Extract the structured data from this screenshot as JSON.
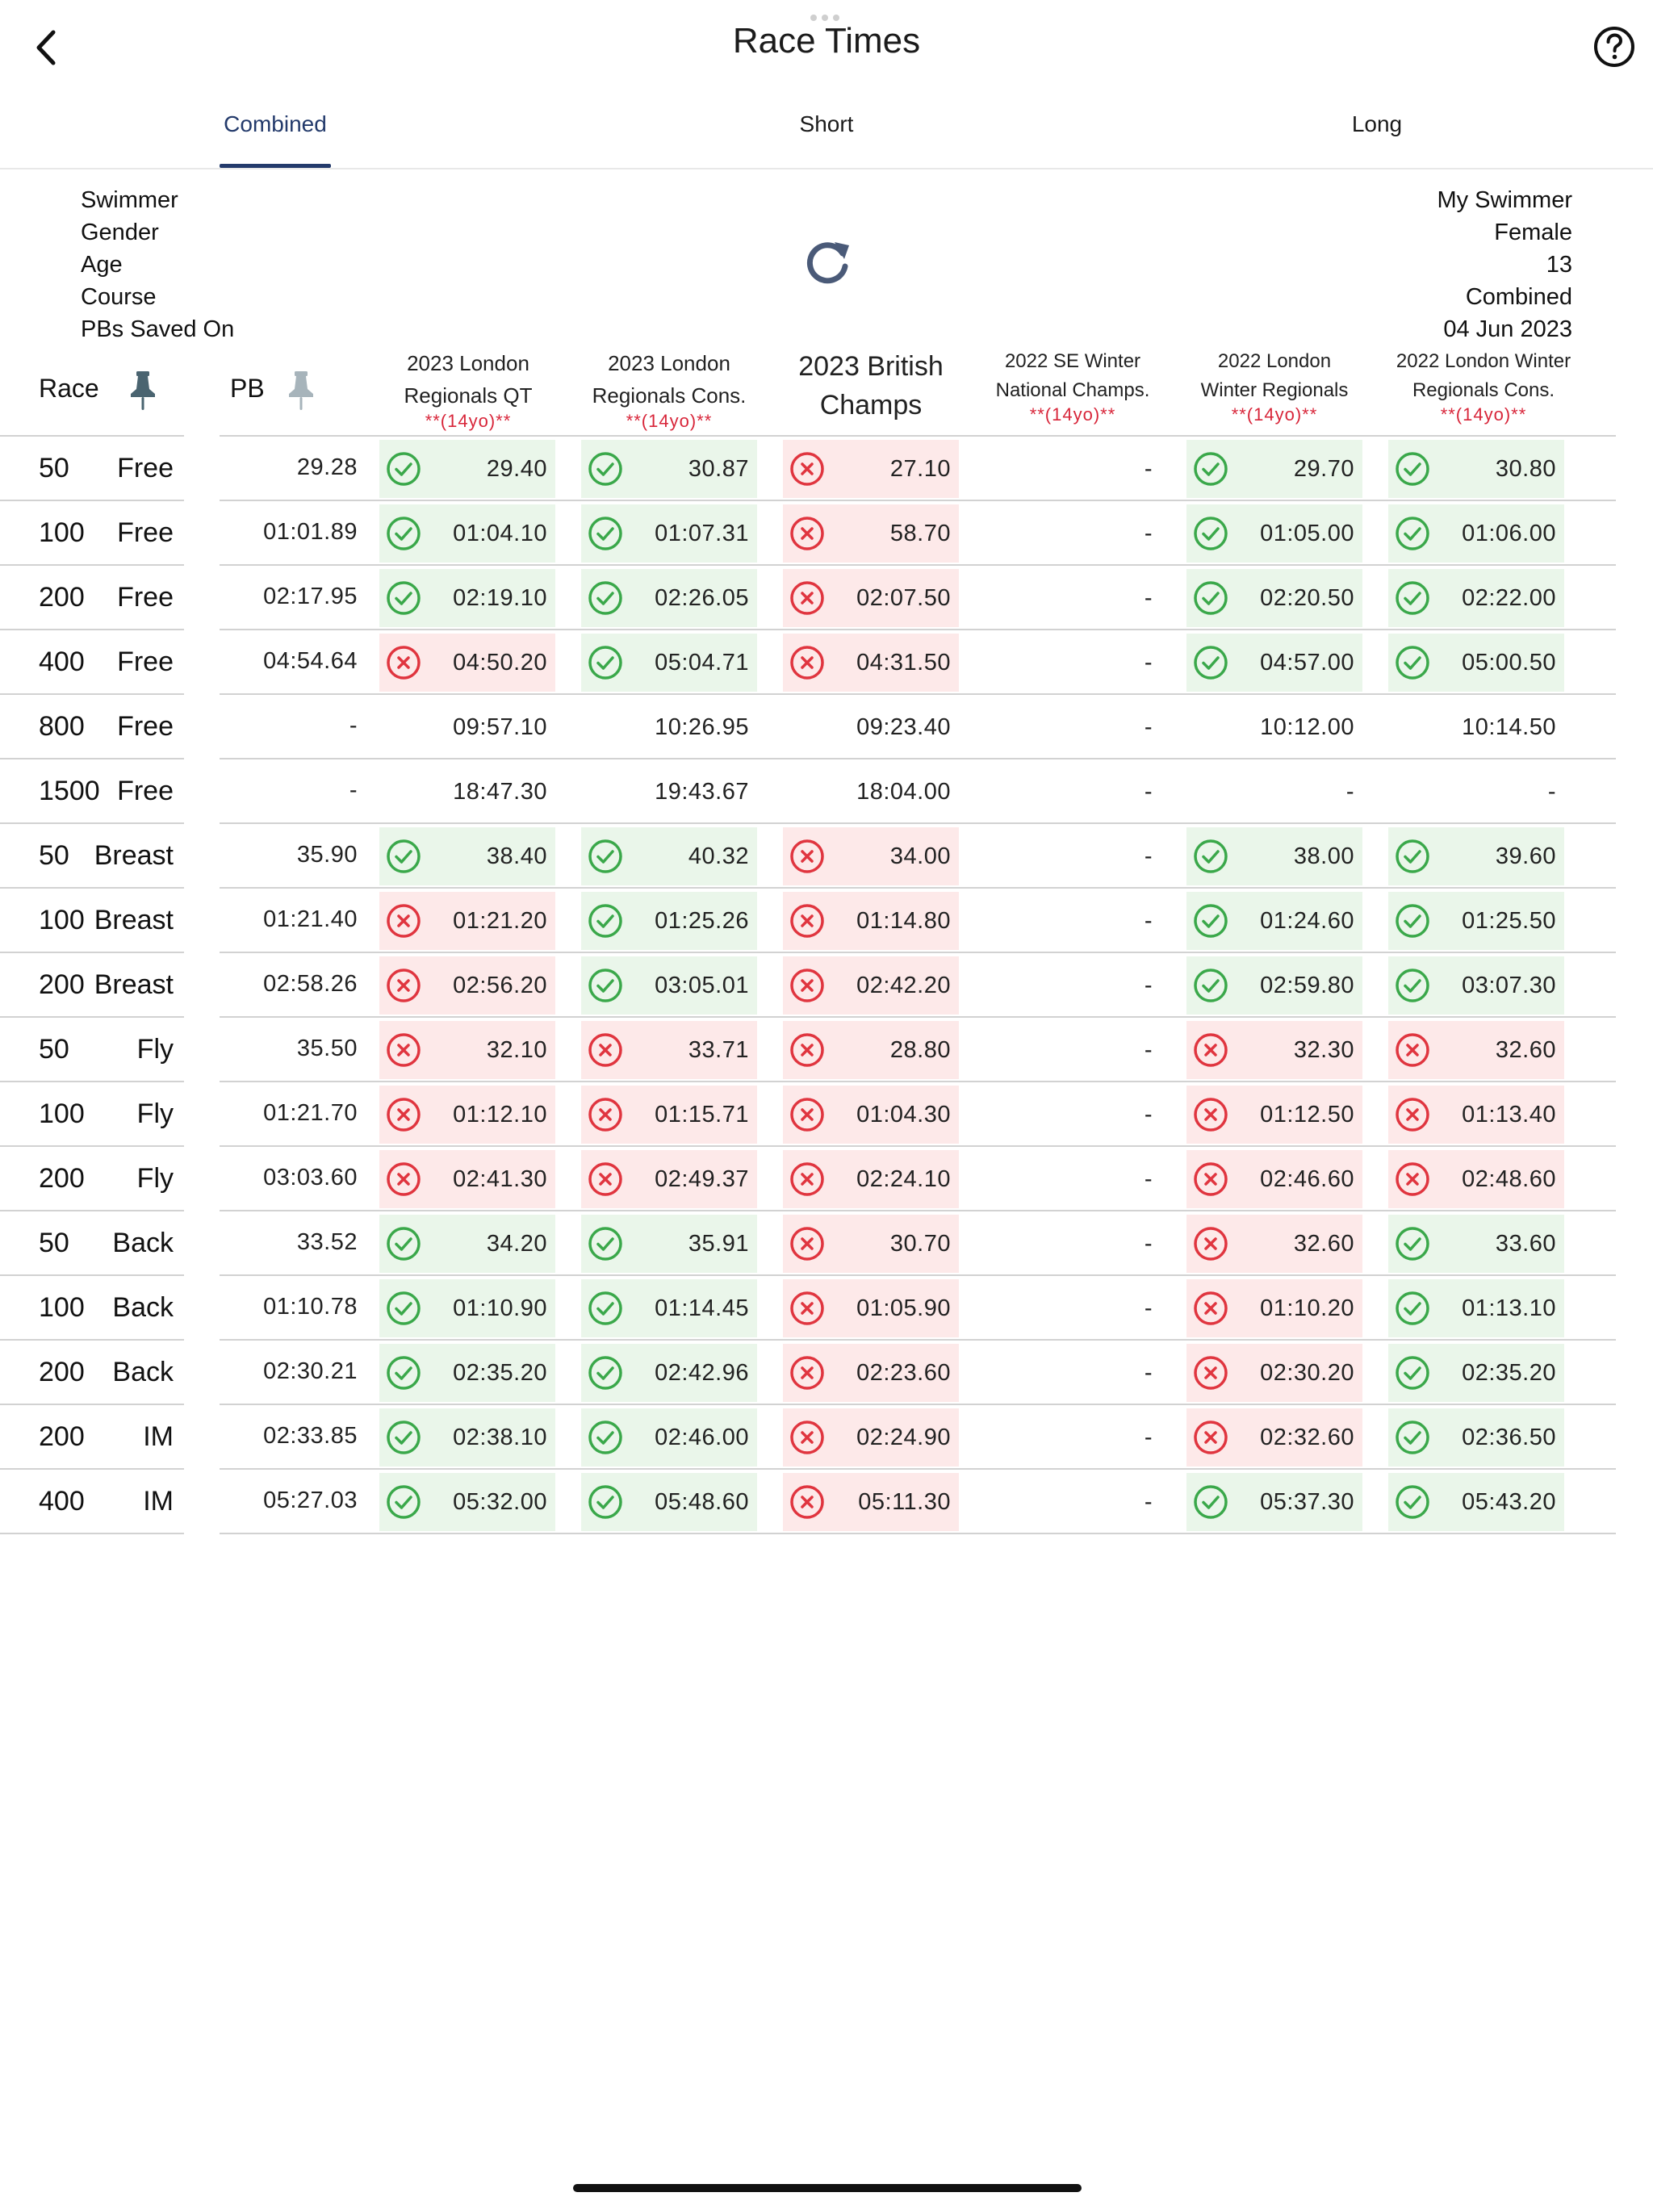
{
  "header": {
    "title": "Race Times"
  },
  "tabs": [
    {
      "label": "Combined",
      "active": true
    },
    {
      "label": "Short",
      "active": false
    },
    {
      "label": "Long",
      "active": false
    }
  ],
  "info": {
    "labels": [
      "Swimmer",
      "Gender",
      "Age",
      "Course",
      "PBs Saved On"
    ],
    "values": [
      "My Swimmer",
      "Female",
      "13",
      "Combined",
      "04 Jun 2023"
    ]
  },
  "columns": {
    "race": "Race",
    "pb": "PB",
    "meets": [
      {
        "line1": "2023 London",
        "line2": "Regionals QT",
        "tag": "**(14yo)**"
      },
      {
        "line1": "2023 London",
        "line2": "Regionals Cons.",
        "tag": "**(14yo)**"
      },
      {
        "line1": "2023 British",
        "line2": "Champs",
        "tag": ""
      },
      {
        "line1": "2022 SE Winter",
        "line2": "National Champs.",
        "tag": "**(14yo)**"
      },
      {
        "line1": "2022 London",
        "line2": "Winter Regionals",
        "tag": "**(14yo)**"
      },
      {
        "line1": "2022 London Winter",
        "line2": "Regionals Cons.",
        "tag": "**(14yo)**"
      }
    ]
  },
  "colors": {
    "accent": "#233a6b",
    "ok": "#3aa84a",
    "bad": "#e0353f",
    "ok_bg": "#eaf6ea",
    "bad_bg": "#fde9e9"
  },
  "rows": [
    {
      "dist": "50",
      "stroke": "Free",
      "pb": "29.28",
      "cells": [
        [
          "ok",
          "29.40"
        ],
        [
          "ok",
          "30.87"
        ],
        [
          "bad",
          "27.10"
        ],
        [
          "none",
          "-"
        ],
        [
          "ok",
          "29.70"
        ],
        [
          "ok",
          "30.80"
        ]
      ]
    },
    {
      "dist": "100",
      "stroke": "Free",
      "pb": "01:01.89",
      "cells": [
        [
          "ok",
          "01:04.10"
        ],
        [
          "ok",
          "01:07.31"
        ],
        [
          "bad",
          "58.70"
        ],
        [
          "none",
          "-"
        ],
        [
          "ok",
          "01:05.00"
        ],
        [
          "ok",
          "01:06.00"
        ]
      ]
    },
    {
      "dist": "200",
      "stroke": "Free",
      "pb": "02:17.95",
      "cells": [
        [
          "ok",
          "02:19.10"
        ],
        [
          "ok",
          "02:26.05"
        ],
        [
          "bad",
          "02:07.50"
        ],
        [
          "none",
          "-"
        ],
        [
          "ok",
          "02:20.50"
        ],
        [
          "ok",
          "02:22.00"
        ]
      ]
    },
    {
      "dist": "400",
      "stroke": "Free",
      "pb": "04:54.64",
      "cells": [
        [
          "bad",
          "04:50.20"
        ],
        [
          "ok",
          "05:04.71"
        ],
        [
          "bad",
          "04:31.50"
        ],
        [
          "none",
          "-"
        ],
        [
          "ok",
          "04:57.00"
        ],
        [
          "ok",
          "05:00.50"
        ]
      ]
    },
    {
      "dist": "800",
      "stroke": "Free",
      "pb": "-",
      "cells": [
        [
          "none",
          "09:57.10"
        ],
        [
          "none",
          "10:26.95"
        ],
        [
          "none",
          "09:23.40"
        ],
        [
          "none",
          "-"
        ],
        [
          "none",
          "10:12.00"
        ],
        [
          "none",
          "10:14.50"
        ]
      ]
    },
    {
      "dist": "1500",
      "stroke": "Free",
      "pb": "-",
      "cells": [
        [
          "none",
          "18:47.30"
        ],
        [
          "none",
          "19:43.67"
        ],
        [
          "none",
          "18:04.00"
        ],
        [
          "none",
          "-"
        ],
        [
          "none",
          "-"
        ],
        [
          "none",
          "-"
        ]
      ]
    },
    {
      "dist": "50",
      "stroke": "Breast",
      "pb": "35.90",
      "cells": [
        [
          "ok",
          "38.40"
        ],
        [
          "ok",
          "40.32"
        ],
        [
          "bad",
          "34.00"
        ],
        [
          "none",
          "-"
        ],
        [
          "ok",
          "38.00"
        ],
        [
          "ok",
          "39.60"
        ]
      ]
    },
    {
      "dist": "100",
      "stroke": "Breast",
      "pb": "01:21.40",
      "cells": [
        [
          "bad",
          "01:21.20"
        ],
        [
          "ok",
          "01:25.26"
        ],
        [
          "bad",
          "01:14.80"
        ],
        [
          "none",
          "-"
        ],
        [
          "ok",
          "01:24.60"
        ],
        [
          "ok",
          "01:25.50"
        ]
      ]
    },
    {
      "dist": "200",
      "stroke": "Breast",
      "pb": "02:58.26",
      "cells": [
        [
          "bad",
          "02:56.20"
        ],
        [
          "ok",
          "03:05.01"
        ],
        [
          "bad",
          "02:42.20"
        ],
        [
          "none",
          "-"
        ],
        [
          "ok",
          "02:59.80"
        ],
        [
          "ok",
          "03:07.30"
        ]
      ]
    },
    {
      "dist": "50",
      "stroke": "Fly",
      "pb": "35.50",
      "cells": [
        [
          "bad",
          "32.10"
        ],
        [
          "bad",
          "33.71"
        ],
        [
          "bad",
          "28.80"
        ],
        [
          "none",
          "-"
        ],
        [
          "bad",
          "32.30"
        ],
        [
          "bad",
          "32.60"
        ]
      ]
    },
    {
      "dist": "100",
      "stroke": "Fly",
      "pb": "01:21.70",
      "cells": [
        [
          "bad",
          "01:12.10"
        ],
        [
          "bad",
          "01:15.71"
        ],
        [
          "bad",
          "01:04.30"
        ],
        [
          "none",
          "-"
        ],
        [
          "bad",
          "01:12.50"
        ],
        [
          "bad",
          "01:13.40"
        ]
      ]
    },
    {
      "dist": "200",
      "stroke": "Fly",
      "pb": "03:03.60",
      "cells": [
        [
          "bad",
          "02:41.30"
        ],
        [
          "bad",
          "02:49.37"
        ],
        [
          "bad",
          "02:24.10"
        ],
        [
          "none",
          "-"
        ],
        [
          "bad",
          "02:46.60"
        ],
        [
          "bad",
          "02:48.60"
        ]
      ]
    },
    {
      "dist": "50",
      "stroke": "Back",
      "pb": "33.52",
      "cells": [
        [
          "ok",
          "34.20"
        ],
        [
          "ok",
          "35.91"
        ],
        [
          "bad",
          "30.70"
        ],
        [
          "none",
          "-"
        ],
        [
          "bad",
          "32.60"
        ],
        [
          "ok",
          "33.60"
        ]
      ]
    },
    {
      "dist": "100",
      "stroke": "Back",
      "pb": "01:10.78",
      "cells": [
        [
          "ok",
          "01:10.90"
        ],
        [
          "ok",
          "01:14.45"
        ],
        [
          "bad",
          "01:05.90"
        ],
        [
          "none",
          "-"
        ],
        [
          "bad",
          "01:10.20"
        ],
        [
          "ok",
          "01:13.10"
        ]
      ]
    },
    {
      "dist": "200",
      "stroke": "Back",
      "pb": "02:30.21",
      "cells": [
        [
          "ok",
          "02:35.20"
        ],
        [
          "ok",
          "02:42.96"
        ],
        [
          "bad",
          "02:23.60"
        ],
        [
          "none",
          "-"
        ],
        [
          "bad",
          "02:30.20"
        ],
        [
          "ok",
          "02:35.20"
        ]
      ]
    },
    {
      "dist": "200",
      "stroke": "IM",
      "pb": "02:33.85",
      "cells": [
        [
          "ok",
          "02:38.10"
        ],
        [
          "ok",
          "02:46.00"
        ],
        [
          "bad",
          "02:24.90"
        ],
        [
          "none",
          "-"
        ],
        [
          "bad",
          "02:32.60"
        ],
        [
          "ok",
          "02:36.50"
        ]
      ]
    },
    {
      "dist": "400",
      "stroke": "IM",
      "pb": "05:27.03",
      "cells": [
        [
          "ok",
          "05:32.00"
        ],
        [
          "ok",
          "05:48.60"
        ],
        [
          "bad",
          "05:11.30"
        ],
        [
          "none",
          "-"
        ],
        [
          "ok",
          "05:37.30"
        ],
        [
          "ok",
          "05:43.20"
        ]
      ]
    }
  ]
}
